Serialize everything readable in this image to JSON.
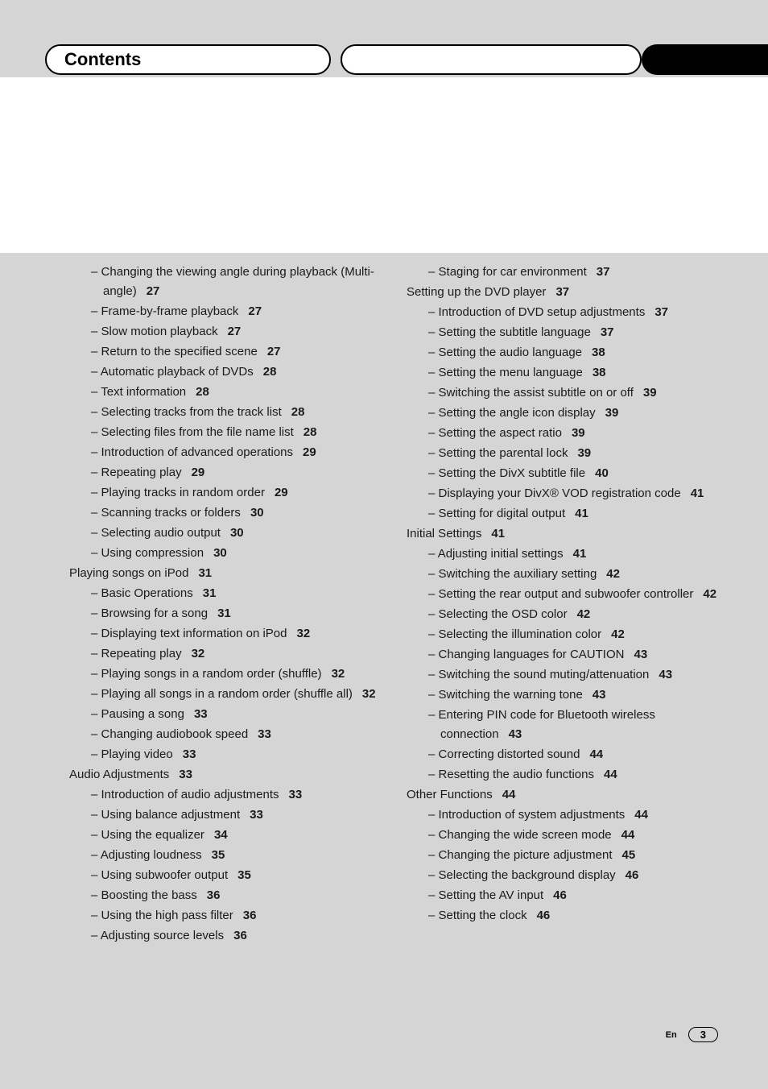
{
  "title": "Contents",
  "footer": {
    "lang": "En",
    "page": "3"
  },
  "left": [
    {
      "t": "entry",
      "text": "Changing the viewing angle during playback (Multi-angle)",
      "page": "27"
    },
    {
      "t": "entry",
      "text": "Frame-by-frame playback",
      "page": "27"
    },
    {
      "t": "entry",
      "text": "Slow motion playback",
      "page": "27"
    },
    {
      "t": "entry",
      "text": "Return to the specified scene",
      "page": "27"
    },
    {
      "t": "entry",
      "text": "Automatic playback of DVDs",
      "page": "28"
    },
    {
      "t": "entry",
      "text": "Text information",
      "page": "28"
    },
    {
      "t": "entry",
      "text": "Selecting tracks from the track list",
      "page": "28"
    },
    {
      "t": "entry",
      "text": "Selecting files from the file name list",
      "page": "28"
    },
    {
      "t": "entry",
      "text": "Introduction of advanced operations",
      "page": "29"
    },
    {
      "t": "entry",
      "text": "Repeating play",
      "page": "29"
    },
    {
      "t": "entry",
      "text": "Playing tracks in random order",
      "page": "29"
    },
    {
      "t": "entry",
      "text": "Scanning tracks or folders",
      "page": "30"
    },
    {
      "t": "entry",
      "text": "Selecting audio output",
      "page": "30"
    },
    {
      "t": "entry",
      "text": "Using compression",
      "page": "30"
    },
    {
      "t": "heading",
      "text": "Playing songs on iPod",
      "page": "31"
    },
    {
      "t": "entry",
      "text": "Basic Operations",
      "page": "31"
    },
    {
      "t": "entry",
      "text": "Browsing for a song",
      "page": "31"
    },
    {
      "t": "entry",
      "text": "Displaying text information on iPod",
      "page": "32"
    },
    {
      "t": "entry",
      "text": "Repeating play",
      "page": "32"
    },
    {
      "t": "entry",
      "text": "Playing songs in a random order (shuffle)",
      "page": "32"
    },
    {
      "t": "entry",
      "text": "Playing all songs in a random order (shuffle all)",
      "page": "32"
    },
    {
      "t": "entry",
      "text": "Pausing a song",
      "page": "33"
    },
    {
      "t": "entry",
      "text": "Changing audiobook speed",
      "page": "33"
    },
    {
      "t": "entry",
      "text": "Playing video",
      "page": "33"
    },
    {
      "t": "heading",
      "text": "Audio Adjustments",
      "page": "33"
    },
    {
      "t": "entry",
      "text": "Introduction of audio adjustments",
      "page": "33"
    },
    {
      "t": "entry",
      "text": "Using balance adjustment",
      "page": "33"
    },
    {
      "t": "entry",
      "text": "Using the equalizer",
      "page": "34"
    },
    {
      "t": "entry",
      "text": "Adjusting loudness",
      "page": "35"
    },
    {
      "t": "entry",
      "text": "Using subwoofer output",
      "page": "35"
    },
    {
      "t": "entry",
      "text": "Boosting the bass",
      "page": "36"
    },
    {
      "t": "entry",
      "text": "Using the high pass filter",
      "page": "36"
    },
    {
      "t": "entry",
      "text": "Adjusting source levels",
      "page": "36"
    }
  ],
  "right": [
    {
      "t": "entry",
      "text": "Staging for car environment",
      "page": "37"
    },
    {
      "t": "heading",
      "text": "Setting up the DVD player",
      "page": "37"
    },
    {
      "t": "entry",
      "text": "Introduction of DVD setup adjustments",
      "page": "37"
    },
    {
      "t": "entry",
      "text": "Setting the subtitle language",
      "page": "37"
    },
    {
      "t": "entry",
      "text": "Setting the audio language",
      "page": "38"
    },
    {
      "t": "entry",
      "text": "Setting the menu language",
      "page": "38"
    },
    {
      "t": "entry",
      "text": "Switching the assist subtitle on or off",
      "page": "39"
    },
    {
      "t": "entry",
      "text": "Setting the angle icon display",
      "page": "39"
    },
    {
      "t": "entry",
      "text": "Setting the aspect ratio",
      "page": "39"
    },
    {
      "t": "entry",
      "text": "Setting the parental lock",
      "page": "39"
    },
    {
      "t": "entry",
      "text": "Setting the DivX subtitle file",
      "page": "40"
    },
    {
      "t": "entry",
      "text": "Displaying your DivX® VOD registration code",
      "page": "41"
    },
    {
      "t": "entry",
      "text": "Setting for digital output",
      "page": "41"
    },
    {
      "t": "heading",
      "text": "Initial Settings",
      "page": "41"
    },
    {
      "t": "entry",
      "text": "Adjusting initial settings",
      "page": "41"
    },
    {
      "t": "entry",
      "text": "Switching the auxiliary setting",
      "page": "42"
    },
    {
      "t": "entry",
      "text": "Setting the rear output and subwoofer controller",
      "page": "42"
    },
    {
      "t": "entry",
      "text": "Selecting the OSD color",
      "page": "42"
    },
    {
      "t": "entry",
      "text": "Selecting the illumination color",
      "page": "42"
    },
    {
      "t": "entry",
      "text": "Changing languages for CAUTION",
      "page": "43"
    },
    {
      "t": "entry",
      "text": "Switching the sound muting/attenuation",
      "page": "43"
    },
    {
      "t": "entry",
      "text": "Switching the warning tone",
      "page": "43"
    },
    {
      "t": "entry",
      "text": "Entering PIN code for Bluetooth wireless connection",
      "page": "43"
    },
    {
      "t": "entry",
      "text": "Correcting distorted sound",
      "page": "44"
    },
    {
      "t": "entry",
      "text": "Resetting the audio functions",
      "page": "44"
    },
    {
      "t": "heading",
      "text": "Other Functions",
      "page": "44"
    },
    {
      "t": "entry",
      "text": "Introduction of system adjustments",
      "page": "44"
    },
    {
      "t": "entry",
      "text": "Changing the wide screen mode",
      "page": "44"
    },
    {
      "t": "entry",
      "text": "Changing the picture adjustment",
      "page": "45"
    },
    {
      "t": "entry",
      "text": "Selecting the background display",
      "page": "46"
    },
    {
      "t": "entry",
      "text": "Setting the AV input",
      "page": "46"
    },
    {
      "t": "entry",
      "text": "Setting the clock",
      "page": "46"
    }
  ]
}
